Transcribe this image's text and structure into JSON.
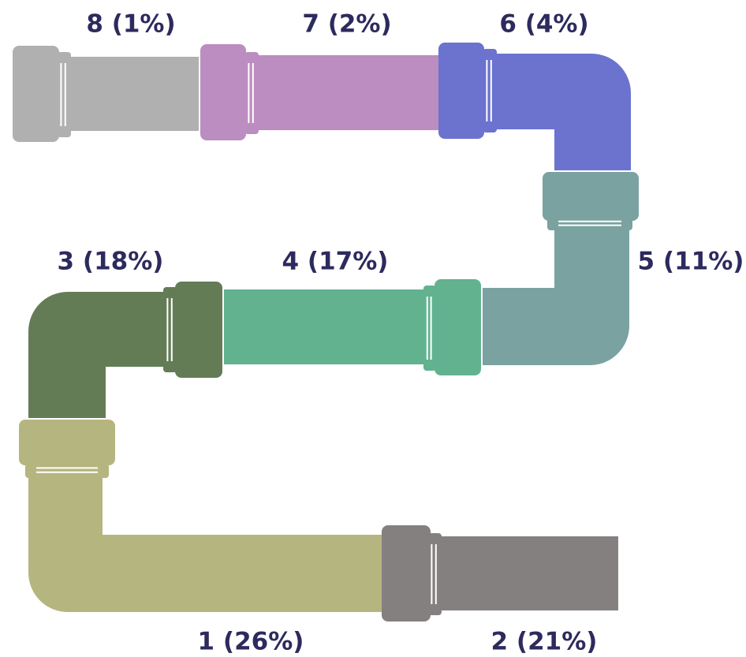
{
  "segments": [
    {
      "label": "1 (26%)",
      "color": "#b5b57f"
    },
    {
      "label": "2 (21%)",
      "color": "#858080"
    },
    {
      "label": "3 (18%)",
      "color": "#647c56"
    },
    {
      "label": "4 (17%)",
      "color": "#62b290"
    },
    {
      "label": "5 (11%)",
      "color": "#7aa2a0"
    },
    {
      "label": "6 (4%)",
      "color": "#6b73cf"
    },
    {
      "label": "7 (2%)",
      "color": "#bc8dc1"
    },
    {
      "label": "8 (1%)",
      "color": "#b0b0b0"
    }
  ]
}
